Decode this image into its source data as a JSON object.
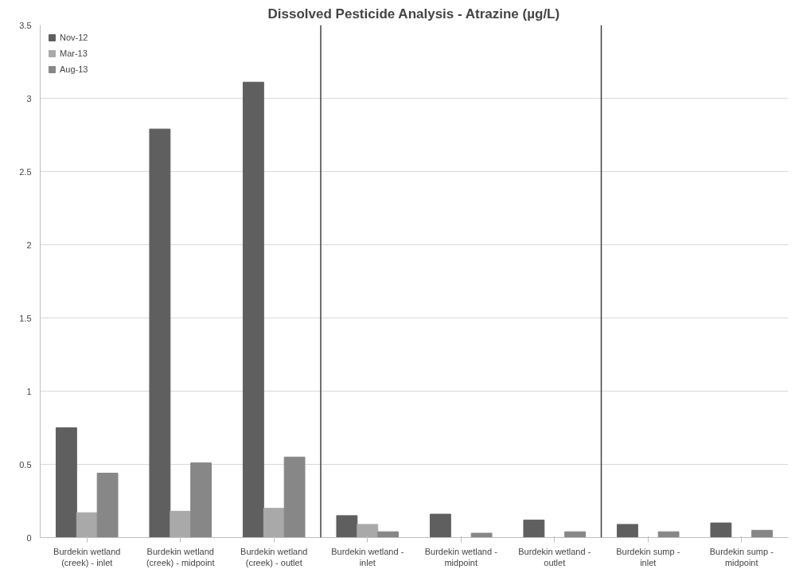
{
  "chart_data": {
    "type": "bar",
    "title": "Dissolved Pesticide Analysis - Atrazine (µg/L)",
    "categories": [
      "Burdekin wetland (creek) - inlet",
      "Burdekin wetland (creek) - midpoint",
      "Burdekin wetland (creek) - outlet",
      "Burdekin wetland - inlet",
      "Burdekin wetland - midpoint",
      "Burdekin wetland - outlet",
      "Burdekin sump - inlet",
      "Burdekin sump - midpoint"
    ],
    "series": [
      {
        "name": "Nov-12",
        "color": "#5f5f5f",
        "values": [
          0.75,
          2.79,
          3.11,
          0.15,
          0.16,
          0.12,
          0.09,
          0.1
        ]
      },
      {
        "name": "Mar-13",
        "color": "#a9a9a9",
        "values": [
          0.17,
          0.18,
          0.2,
          0.09,
          null,
          null,
          null,
          null
        ]
      },
      {
        "name": "Aug-13",
        "color": "#878787",
        "values": [
          0.44,
          0.51,
          0.55,
          0.04,
          0.03,
          0.04,
          0.04,
          0.05
        ]
      }
    ],
    "ylim": [
      0,
      3.5
    ],
    "yticks": [
      0,
      0.5,
      1,
      1.5,
      2,
      2.5,
      3,
      3.5
    ],
    "grid": "y",
    "legend": "top left"
  }
}
